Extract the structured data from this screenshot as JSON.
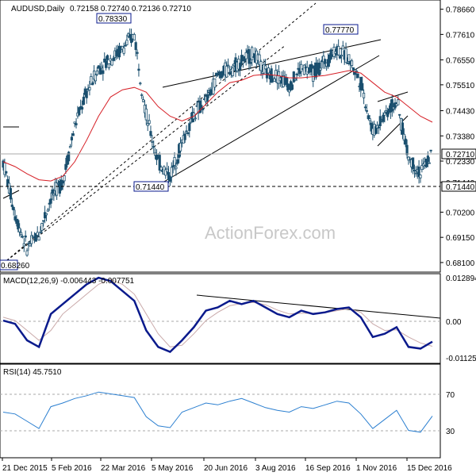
{
  "header": {
    "symbol": "AUDUSD,Daily",
    "ohlc": "0.72158 0.72740 0.72136 0.72710"
  },
  "watermark": "ActionForex.com",
  "colors": {
    "candle": "#1a4f6e",
    "ma": "#d61f26",
    "trendline": "#000000",
    "macd_line": "#0a1a8c",
    "signal_line": "#c9a9a9",
    "rsi_line": "#2b7fd0",
    "label_border": "#0a1a8c",
    "grid": "#aaaaaa"
  },
  "annotations": {
    "high_mar": "0.78330",
    "high_oct": "0.77770",
    "low_may": "0.71440",
    "low_jan": "0.68260",
    "current_price": "0.72710",
    "support_price": "0.71440"
  },
  "x_ticks": [
    "21 Dec 2015",
    "5 Feb 2016",
    "22 Mar 2016",
    "5 May 2016",
    "20 Jun 2016",
    "3 Aug 2016",
    "16 Sep 2016",
    "1 Nov 2016",
    "15 Dec 2016"
  ],
  "price_axis_ticks": [
    "0.78660",
    "0.77610",
    "0.76550",
    "0.75510",
    "0.74430",
    "0.73380",
    "0.72330",
    "0.71440",
    "0.70200",
    "0.69150",
    "0.68100"
  ],
  "macd": {
    "label": "MACD(12,26,9) -0.006443 -0.007751",
    "axis_ticks": [
      "0.012894",
      "0.00",
      "-0.011253"
    ]
  },
  "rsi": {
    "label": "RSI(14) 45.7510",
    "axis_ticks": [
      "70",
      "30"
    ]
  },
  "chart_data": [
    {
      "type": "candlestick",
      "title": "AUDUSD,Daily",
      "ylim": [
        0.678,
        0.7878
      ],
      "x": [
        "2015-12-21",
        "2016-01-05",
        "2016-01-15",
        "2016-01-25",
        "2016-02-05",
        "2016-02-18",
        "2016-03-01",
        "2016-03-10",
        "2016-03-22",
        "2016-04-01",
        "2016-04-12",
        "2016-04-21",
        "2016-05-05",
        "2016-05-16",
        "2016-05-24",
        "2016-06-06",
        "2016-06-20",
        "2016-06-30",
        "2016-07-11",
        "2016-07-22",
        "2016-08-03",
        "2016-08-15",
        "2016-08-25",
        "2016-09-05",
        "2016-09-16",
        "2016-09-28",
        "2016-10-07",
        "2016-10-18",
        "2016-10-27",
        "2016-11-01",
        "2016-11-10",
        "2016-11-21",
        "2016-12-01",
        "2016-12-08",
        "2016-12-15",
        "2016-12-23",
        "2016-12-30"
      ],
      "close": [
        0.723,
        0.701,
        0.687,
        0.693,
        0.708,
        0.715,
        0.738,
        0.752,
        0.762,
        0.766,
        0.77,
        0.776,
        0.742,
        0.723,
        0.717,
        0.731,
        0.743,
        0.748,
        0.759,
        0.762,
        0.765,
        0.768,
        0.76,
        0.759,
        0.755,
        0.762,
        0.76,
        0.765,
        0.77,
        0.766,
        0.756,
        0.735,
        0.743,
        0.748,
        0.725,
        0.718,
        0.7271
      ],
      "ma_period_note": "",
      "ma": [
        0.723,
        0.721,
        0.718,
        0.7155,
        0.715,
        0.717,
        0.723,
        0.732,
        0.742,
        0.75,
        0.753,
        0.754,
        0.752,
        0.746,
        0.742,
        0.74,
        0.742,
        0.747,
        0.752,
        0.756,
        0.757,
        0.759,
        0.7595,
        0.759,
        0.758,
        0.758,
        0.7585,
        0.759,
        0.76,
        0.761,
        0.76,
        0.756,
        0.752,
        0.75,
        0.746,
        0.742,
        0.7395
      ],
      "levels": {
        "current": 0.7271,
        "support": 0.7144
      }
    },
    {
      "type": "line",
      "title": "MACD(12,26,9)",
      "ylim": [
        -0.0125,
        0.0135
      ],
      "series": [
        {
          "values": [
            0.0,
            -0.001,
            -0.006,
            -0.008,
            0.002,
            0.005,
            0.008,
            0.011,
            0.013,
            0.012,
            0.009,
            0.006,
            -0.003,
            -0.008,
            -0.0095,
            -0.006,
            -0.002,
            0.003,
            0.004,
            0.006,
            0.005,
            0.006,
            0.004,
            0.002,
            0.001,
            0.003,
            0.002,
            0.0025,
            0.0035,
            0.004,
            0.001,
            -0.005,
            -0.004,
            -0.002,
            -0.008,
            -0.0085,
            -0.0064
          ]
        },
        {
          "values": [
            0.001,
            0.0,
            -0.003,
            -0.006,
            -0.003,
            0.002,
            0.005,
            0.008,
            0.011,
            0.0125,
            0.011,
            0.008,
            0.002,
            -0.004,
            -0.008,
            -0.0075,
            -0.004,
            0.0,
            0.0025,
            0.0045,
            0.0052,
            0.0055,
            0.0048,
            0.0032,
            0.002,
            0.0022,
            0.0022,
            0.0024,
            0.003,
            0.0036,
            0.0025,
            -0.001,
            -0.003,
            -0.0028,
            -0.005,
            -0.0068,
            -0.0078
          ]
        }
      ]
    },
    {
      "type": "line",
      "title": "RSI(14)",
      "ylim": [
        0,
        100
      ],
      "series": [
        {
          "values": [
            50,
            48,
            40,
            32,
            56,
            60,
            65,
            68,
            72,
            70,
            68,
            66,
            45,
            35,
            33,
            50,
            55,
            60,
            58,
            62,
            65,
            60,
            55,
            52,
            50,
            56,
            54,
            58,
            62,
            60,
            48,
            32,
            42,
            52,
            30,
            28,
            45.75
          ]
        }
      ]
    }
  ]
}
